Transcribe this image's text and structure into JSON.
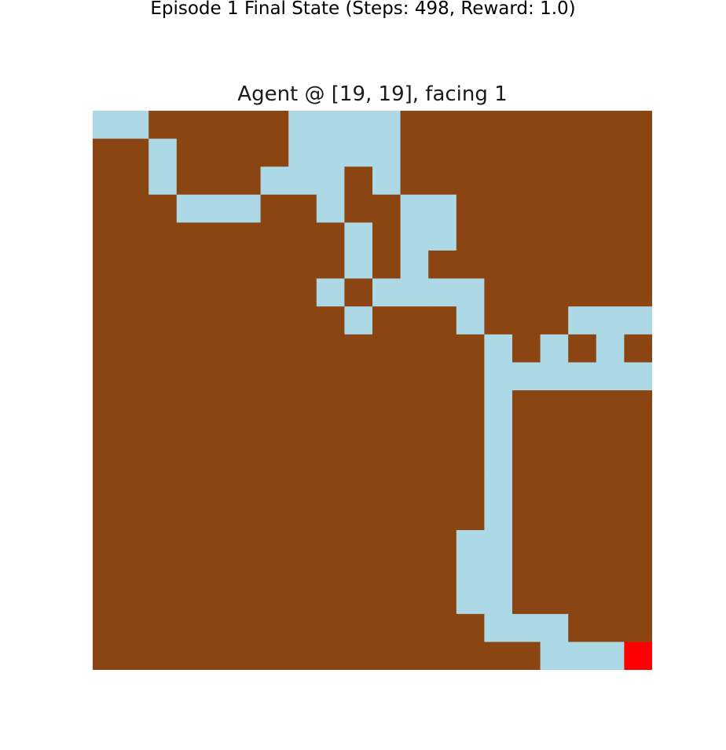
{
  "figure": {
    "title": "Episode 1 Final State (Steps: 498, Reward: 1.0)"
  },
  "panel": {
    "title": "Agent @ [19, 19], facing 1"
  },
  "colors": {
    "floor": "#8b4513",
    "visited": "#add8e6",
    "agent": "#ff0000"
  },
  "legend_codes": {
    "B": "floor",
    "L": "visited",
    "R": "agent"
  },
  "grid": [
    "LLBBBBBLLLLBBBBBBBBB",
    "BBLBBBBLLLLBBBBBBBBB",
    "BBLBBBLLLBLBBBBBBBBB",
    "BBBLLLBBLBBLLBBBBBBB",
    "BBBBBBBBBLBLLBBBBBBB",
    "BBBBBBBBBLBLBBBBBBBB",
    "BBBBBBBBLBLLLLBBBBBB",
    "BBBBBBBBBLBBBLBBBLLL",
    "BBBBBBBBBBBBBBLBLBLB",
    "BBBBBBBBBBBBBBLLLLLL",
    "BBBBBBBBBBBBBBLBBBBB",
    "BBBBBBBBBBBBBBLBBBBB",
    "BBBBBBBBBBBBBBLBBBBB",
    "BBBBBBBBBBBBBBLBBBBB",
    "BBBBBBBBBBBBBBLBBBBB",
    "BBBBBBBBBBBBBLLBBBBB",
    "BBBBBBBBBBBBBLLBBBBB",
    "BBBBBBBBBBBBBLLBBBBB",
    "BBBBBBBBBBBBBBLLLBBB",
    "BBBBBBBBBBBBBBBBLLLR"
  ]
}
